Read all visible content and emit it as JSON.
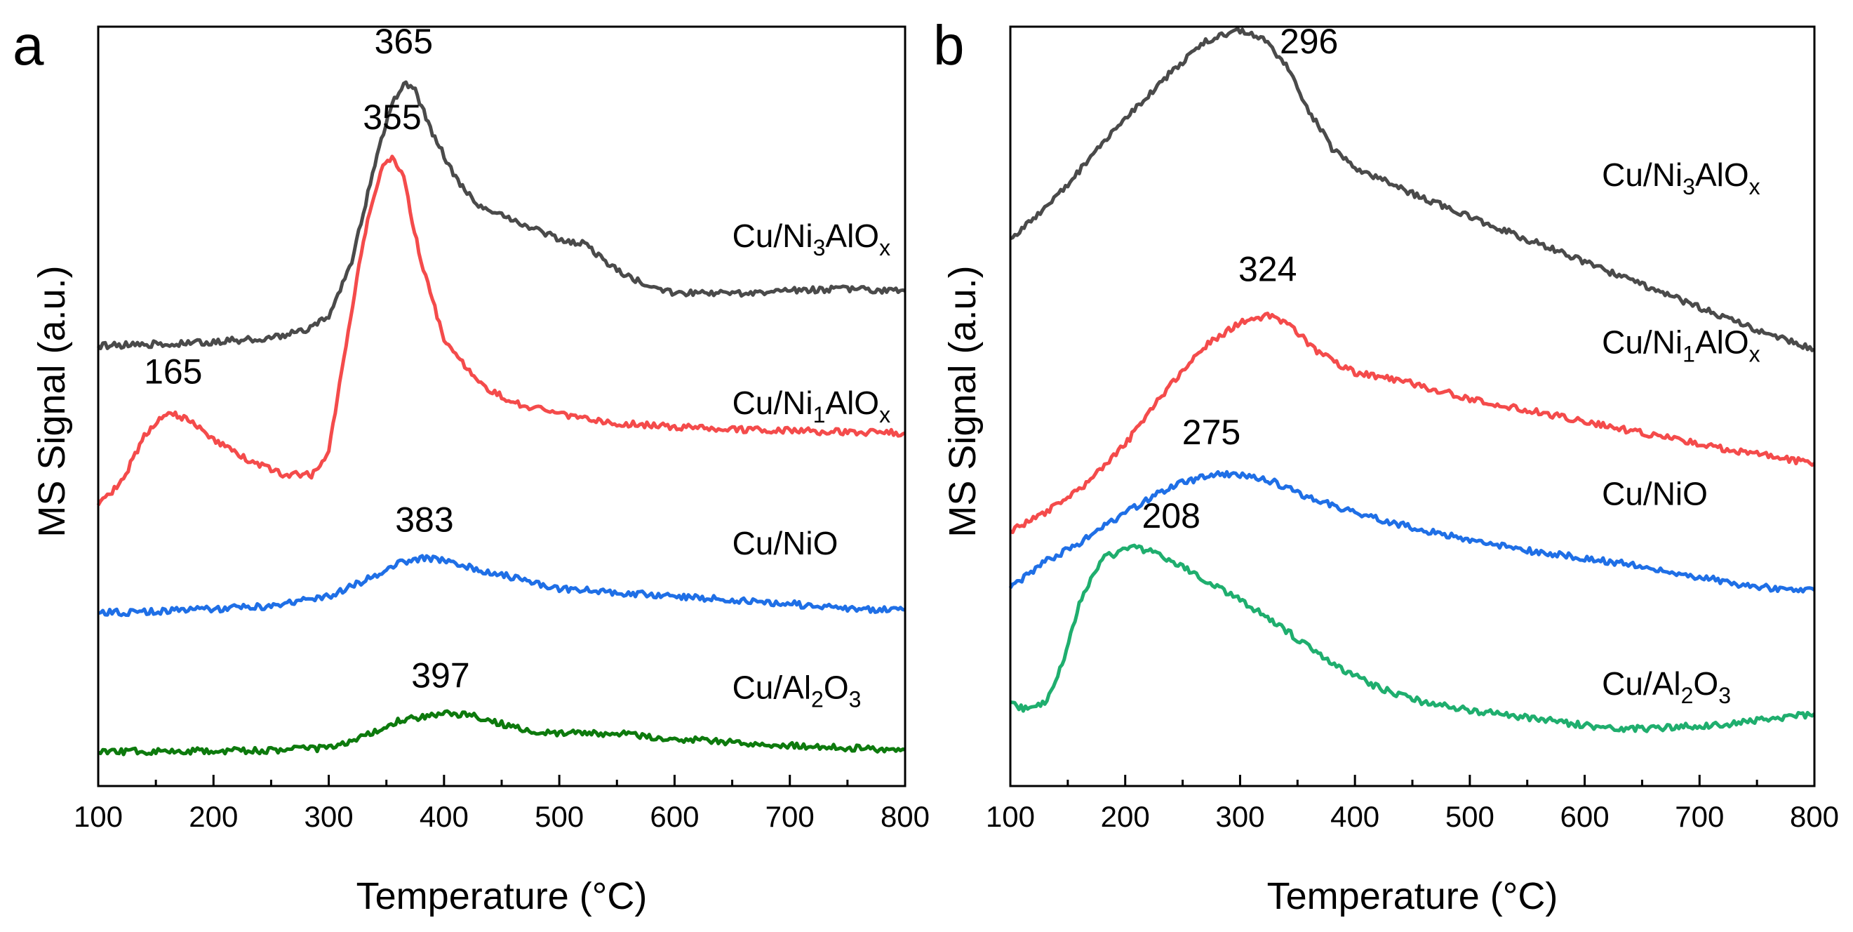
{
  "chart_data": [
    {
      "panel_label": "a",
      "type": "line",
      "xlabel": "Temperature (°C)",
      "ylabel": "MS Signal (a.u.)",
      "xlim": [
        100,
        800
      ],
      "ylim": [
        0,
        1
      ],
      "xticks": [
        100,
        200,
        300,
        400,
        500,
        600,
        700,
        800
      ],
      "y_ticks_labeled": false,
      "grid": false,
      "legend": "inline-right",
      "series": [
        {
          "key": "s0",
          "label_main": "Cu/Ni",
          "label_sub1": "3",
          "label_mid": "AlO",
          "label_sub2": "x",
          "label_x": 650,
          "label_y": 0.71,
          "color": "#4a4a4a",
          "x": [
            100,
            150,
            200,
            250,
            280,
            300,
            320,
            340,
            355,
            365,
            375,
            390,
            410,
            430,
            460,
            500,
            520,
            550,
            580,
            600,
            650,
            700,
            750,
            800
          ],
          "y": [
            0.58,
            0.582,
            0.585,
            0.59,
            0.6,
            0.62,
            0.69,
            0.82,
            0.9,
            0.925,
            0.915,
            0.86,
            0.8,
            0.765,
            0.745,
            0.72,
            0.715,
            0.68,
            0.655,
            0.65,
            0.648,
            0.652,
            0.655,
            0.652
          ]
        },
        {
          "key": "s1",
          "label_main": "Cu/Ni",
          "label_sub1": "1",
          "label_mid": "AlO",
          "label_sub2": "x",
          "label_x": 650,
          "label_y": 0.49,
          "color": "#f44b4b",
          "x": [
            100,
            120,
            140,
            155,
            165,
            180,
            200,
            230,
            260,
            285,
            300,
            315,
            330,
            345,
            355,
            365,
            380,
            400,
            430,
            460,
            500,
            550,
            600,
            650,
            700,
            750,
            800
          ],
          "y": [
            0.37,
            0.4,
            0.46,
            0.485,
            0.49,
            0.48,
            0.455,
            0.43,
            0.41,
            0.41,
            0.44,
            0.58,
            0.72,
            0.81,
            0.83,
            0.8,
            0.69,
            0.59,
            0.53,
            0.505,
            0.49,
            0.478,
            0.473,
            0.47,
            0.468,
            0.466,
            0.465
          ]
        },
        {
          "key": "s2",
          "label_main": "Cu/NiO",
          "label_x": 650,
          "label_y": 0.305,
          "color": "#1f6fe6",
          "x": [
            100,
            150,
            200,
            250,
            300,
            330,
            360,
            383,
            400,
            430,
            460,
            500,
            550,
            600,
            650,
            700,
            750,
            800
          ],
          "y": [
            0.228,
            0.23,
            0.233,
            0.237,
            0.25,
            0.27,
            0.293,
            0.3,
            0.297,
            0.285,
            0.275,
            0.26,
            0.255,
            0.25,
            0.245,
            0.24,
            0.233,
            0.232
          ]
        },
        {
          "key": "s3",
          "label_main": "Cu/Al",
          "label_sub1": "2",
          "label_mid": "O",
          "label_sub2": "3",
          "label_x": 650,
          "label_y": 0.115,
          "color": "#0d7a0d",
          "x": [
            100,
            150,
            200,
            250,
            300,
            330,
            360,
            397,
            420,
            450,
            480,
            520,
            560,
            600,
            650,
            700,
            750,
            800
          ],
          "y": [
            0.045,
            0.046,
            0.046,
            0.047,
            0.05,
            0.065,
            0.085,
            0.095,
            0.095,
            0.082,
            0.07,
            0.07,
            0.068,
            0.062,
            0.058,
            0.054,
            0.05,
            0.048
          ]
        }
      ],
      "annotations": [
        {
          "text": "365",
          "x": 365,
          "y": 0.965
        },
        {
          "text": "355",
          "x": 355,
          "y": 0.865
        },
        {
          "text": "165",
          "x": 165,
          "y": 0.53
        },
        {
          "text": "383",
          "x": 383,
          "y": 0.335
        },
        {
          "text": "397",
          "x": 397,
          "y": 0.13
        }
      ]
    },
    {
      "panel_label": "b",
      "type": "line",
      "xlabel": "Temperature (°C)",
      "ylabel": "MS Signal (a.u.)",
      "xlim": [
        100,
        800
      ],
      "ylim": [
        0,
        1
      ],
      "xticks": [
        100,
        200,
        300,
        400,
        500,
        600,
        700,
        800
      ],
      "y_ticks_labeled": false,
      "grid": false,
      "legend": "inline-right",
      "series": [
        {
          "key": "s0",
          "label_main": "Cu/Ni",
          "label_sub1": "3",
          "label_mid": "AlO",
          "label_sub2": "x",
          "label_x": 615,
          "label_y": 0.79,
          "color": "#4a4a4a",
          "x": [
            100,
            130,
            160,
            200,
            240,
            270,
            296,
            320,
            340,
            360,
            380,
            400,
            450,
            500,
            550,
            600,
            650,
            700,
            750,
            800
          ],
          "y": [
            0.72,
            0.76,
            0.81,
            0.88,
            0.94,
            0.98,
            0.995,
            0.985,
            0.95,
            0.89,
            0.84,
            0.815,
            0.78,
            0.75,
            0.72,
            0.69,
            0.66,
            0.63,
            0.6,
            0.575
          ]
        },
        {
          "key": "s1",
          "label_main": "Cu/Ni",
          "label_sub1": "1",
          "label_mid": "AlO",
          "label_sub2": "x",
          "label_x": 615,
          "label_y": 0.57,
          "color": "#f44b4b",
          "x": [
            100,
            130,
            160,
            200,
            240,
            270,
            300,
            324,
            345,
            365,
            380,
            400,
            450,
            500,
            550,
            600,
            650,
            700,
            750,
            800
          ],
          "y": [
            0.335,
            0.36,
            0.39,
            0.45,
            0.53,
            0.58,
            0.61,
            0.62,
            0.605,
            0.575,
            0.56,
            0.545,
            0.53,
            0.51,
            0.495,
            0.48,
            0.465,
            0.45,
            0.437,
            0.425
          ]
        },
        {
          "key": "s2",
          "label_main": "Cu/NiO",
          "label_x": 615,
          "label_y": 0.37,
          "color": "#1f6fe6",
          "x": [
            100,
            130,
            160,
            200,
            240,
            275,
            300,
            330,
            360,
            400,
            450,
            500,
            550,
            600,
            650,
            700,
            750,
            800
          ],
          "y": [
            0.26,
            0.295,
            0.32,
            0.36,
            0.395,
            0.41,
            0.41,
            0.4,
            0.38,
            0.36,
            0.34,
            0.325,
            0.31,
            0.3,
            0.29,
            0.275,
            0.262,
            0.258
          ]
        },
        {
          "key": "s3",
          "label_main": "Cu/Al",
          "label_sub1": "2",
          "label_mid": "O",
          "label_sub2": "3",
          "label_x": 615,
          "label_y": 0.12,
          "color": "#1fae6e",
          "x": [
            100,
            115,
            130,
            145,
            160,
            180,
            208,
            230,
            260,
            300,
            340,
            380,
            420,
            460,
            500,
            550,
            600,
            640,
            680,
            720,
            760,
            800
          ],
          "y": [
            0.11,
            0.1,
            0.11,
            0.16,
            0.24,
            0.3,
            0.315,
            0.305,
            0.28,
            0.245,
            0.205,
            0.16,
            0.13,
            0.11,
            0.1,
            0.09,
            0.08,
            0.075,
            0.078,
            0.08,
            0.088,
            0.095
          ]
        }
      ],
      "annotations": [
        {
          "text": "296",
          "x": 360,
          "y": 0.965
        },
        {
          "text": "324",
          "x": 324,
          "y": 0.665
        },
        {
          "text": "275",
          "x": 275,
          "y": 0.45
        },
        {
          "text": "208",
          "x": 240,
          "y": 0.34
        }
      ]
    }
  ]
}
